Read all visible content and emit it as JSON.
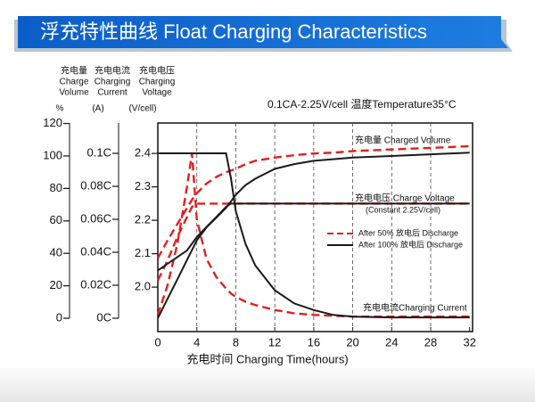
{
  "chart_data": {
    "type": "line",
    "title": "浮充特性曲线 Float Charging Characteristics",
    "conditions": "0.1CA-2.25V/cell  温度Temperature35°C",
    "x_label": "充电时间 Charging Time(hours)",
    "y_label": [
      "充电量",
      "Charge",
      "Volume"
    ],
    "y_unit": "%",
    "y3_label": [
      "充电电流",
      "Charging",
      "Current"
    ],
    "y3_unit": "(A)",
    "y2_label": [
      "充电电压",
      "Charging",
      "Voltage"
    ],
    "y2_unit": "(V/cell)",
    "annotations": [
      "充电量 Charged Volume",
      "充电电压 Charge Voltage",
      "(Constant 2.25V/cell)",
      "充电电流Charging Current"
    ],
    "x": [
      0,
      1,
      2,
      3,
      3.5,
      4,
      5,
      6,
      7,
      7.5,
      8,
      9,
      10,
      12,
      14,
      16,
      18,
      20,
      24,
      28,
      32
    ],
    "xlim": [
      0,
      32.3
    ],
    "xticks": [
      0,
      4,
      8,
      12,
      16,
      20,
      24,
      28,
      32
    ],
    "grid": "x",
    "ylim": [
      -8.2,
      120.3
    ],
    "yticks": [
      0,
      20,
      40,
      60,
      80,
      100,
      120
    ],
    "y2lim": [
      1.867,
      2.491
    ],
    "y2ticks": [
      {
        "value": 2,
        "label": "2.0"
      },
      2.1,
      2.2,
      2.3,
      2.4
    ],
    "y3lim": [
      -0.0081,
      0.1184
    ],
    "y3ticks": [
      {
        "value": 0,
        "label": "0C"
      },
      {
        "value": 0.02,
        "label": "0.02C"
      },
      {
        "value": 0.04,
        "label": "0.04C"
      },
      {
        "value": 0.06,
        "label": "0.06C"
      },
      {
        "value": 0.08,
        "label": "0.08C"
      },
      {
        "value": 0.1,
        "label": "0.1C"
      }
    ],
    "series": [
      {
        "name": "After 50% 放电后 Discharge",
        "color": "#e0201f",
        "dashed": true,
        "volume": [
          37,
          48,
          58,
          68,
          73,
          77,
          83,
          87,
          90,
          91,
          92,
          95,
          97,
          99,
          100.5,
          101.5,
          102,
          103,
          104,
          105,
          106
        ],
        "voltage": [
          2.02,
          2.08,
          2.15,
          2.21,
          2.24,
          2.25,
          2.25,
          2.25,
          2.25,
          2.25,
          2.25,
          2.25,
          2.25,
          2.25,
          2.25,
          2.25,
          2.25,
          2.25,
          2.25,
          2.25,
          2.25
        ],
        "current": [
          0.002,
          0.02,
          0.045,
          0.08,
          0.1,
          0.06,
          0.036,
          0.025,
          0.018,
          0.015,
          0.013,
          0.01,
          0.008,
          0.005,
          0.003,
          0.002,
          0.0015,
          0.001,
          0.001,
          0.001,
          0.001
        ]
      },
      {
        "name": "After 100% 放电后 Discharge",
        "color": "#1a1a1a",
        "dashed": false,
        "volume": [
          0,
          12,
          24,
          36,
          42,
          48,
          56,
          62,
          68,
          72,
          76,
          82,
          86,
          92,
          95,
          97,
          98,
          99,
          100,
          101,
          102
        ],
        "voltage": [
          2.05,
          2.07,
          2.09,
          2.11,
          2.13,
          2.15,
          2.18,
          2.21,
          2.24,
          2.25,
          2.25,
          2.25,
          2.25,
          2.25,
          2.25,
          2.25,
          2.25,
          2.25,
          2.25,
          2.25,
          2.25
        ],
        "current": [
          0.1,
          0.1,
          0.1,
          0.1,
          0.1,
          0.1,
          0.1,
          0.1,
          0.1,
          0.085,
          0.065,
          0.045,
          0.032,
          0.017,
          0.009,
          0.005,
          0.002,
          0.001,
          0.0005,
          0.0005,
          0.0005
        ]
      }
    ]
  }
}
